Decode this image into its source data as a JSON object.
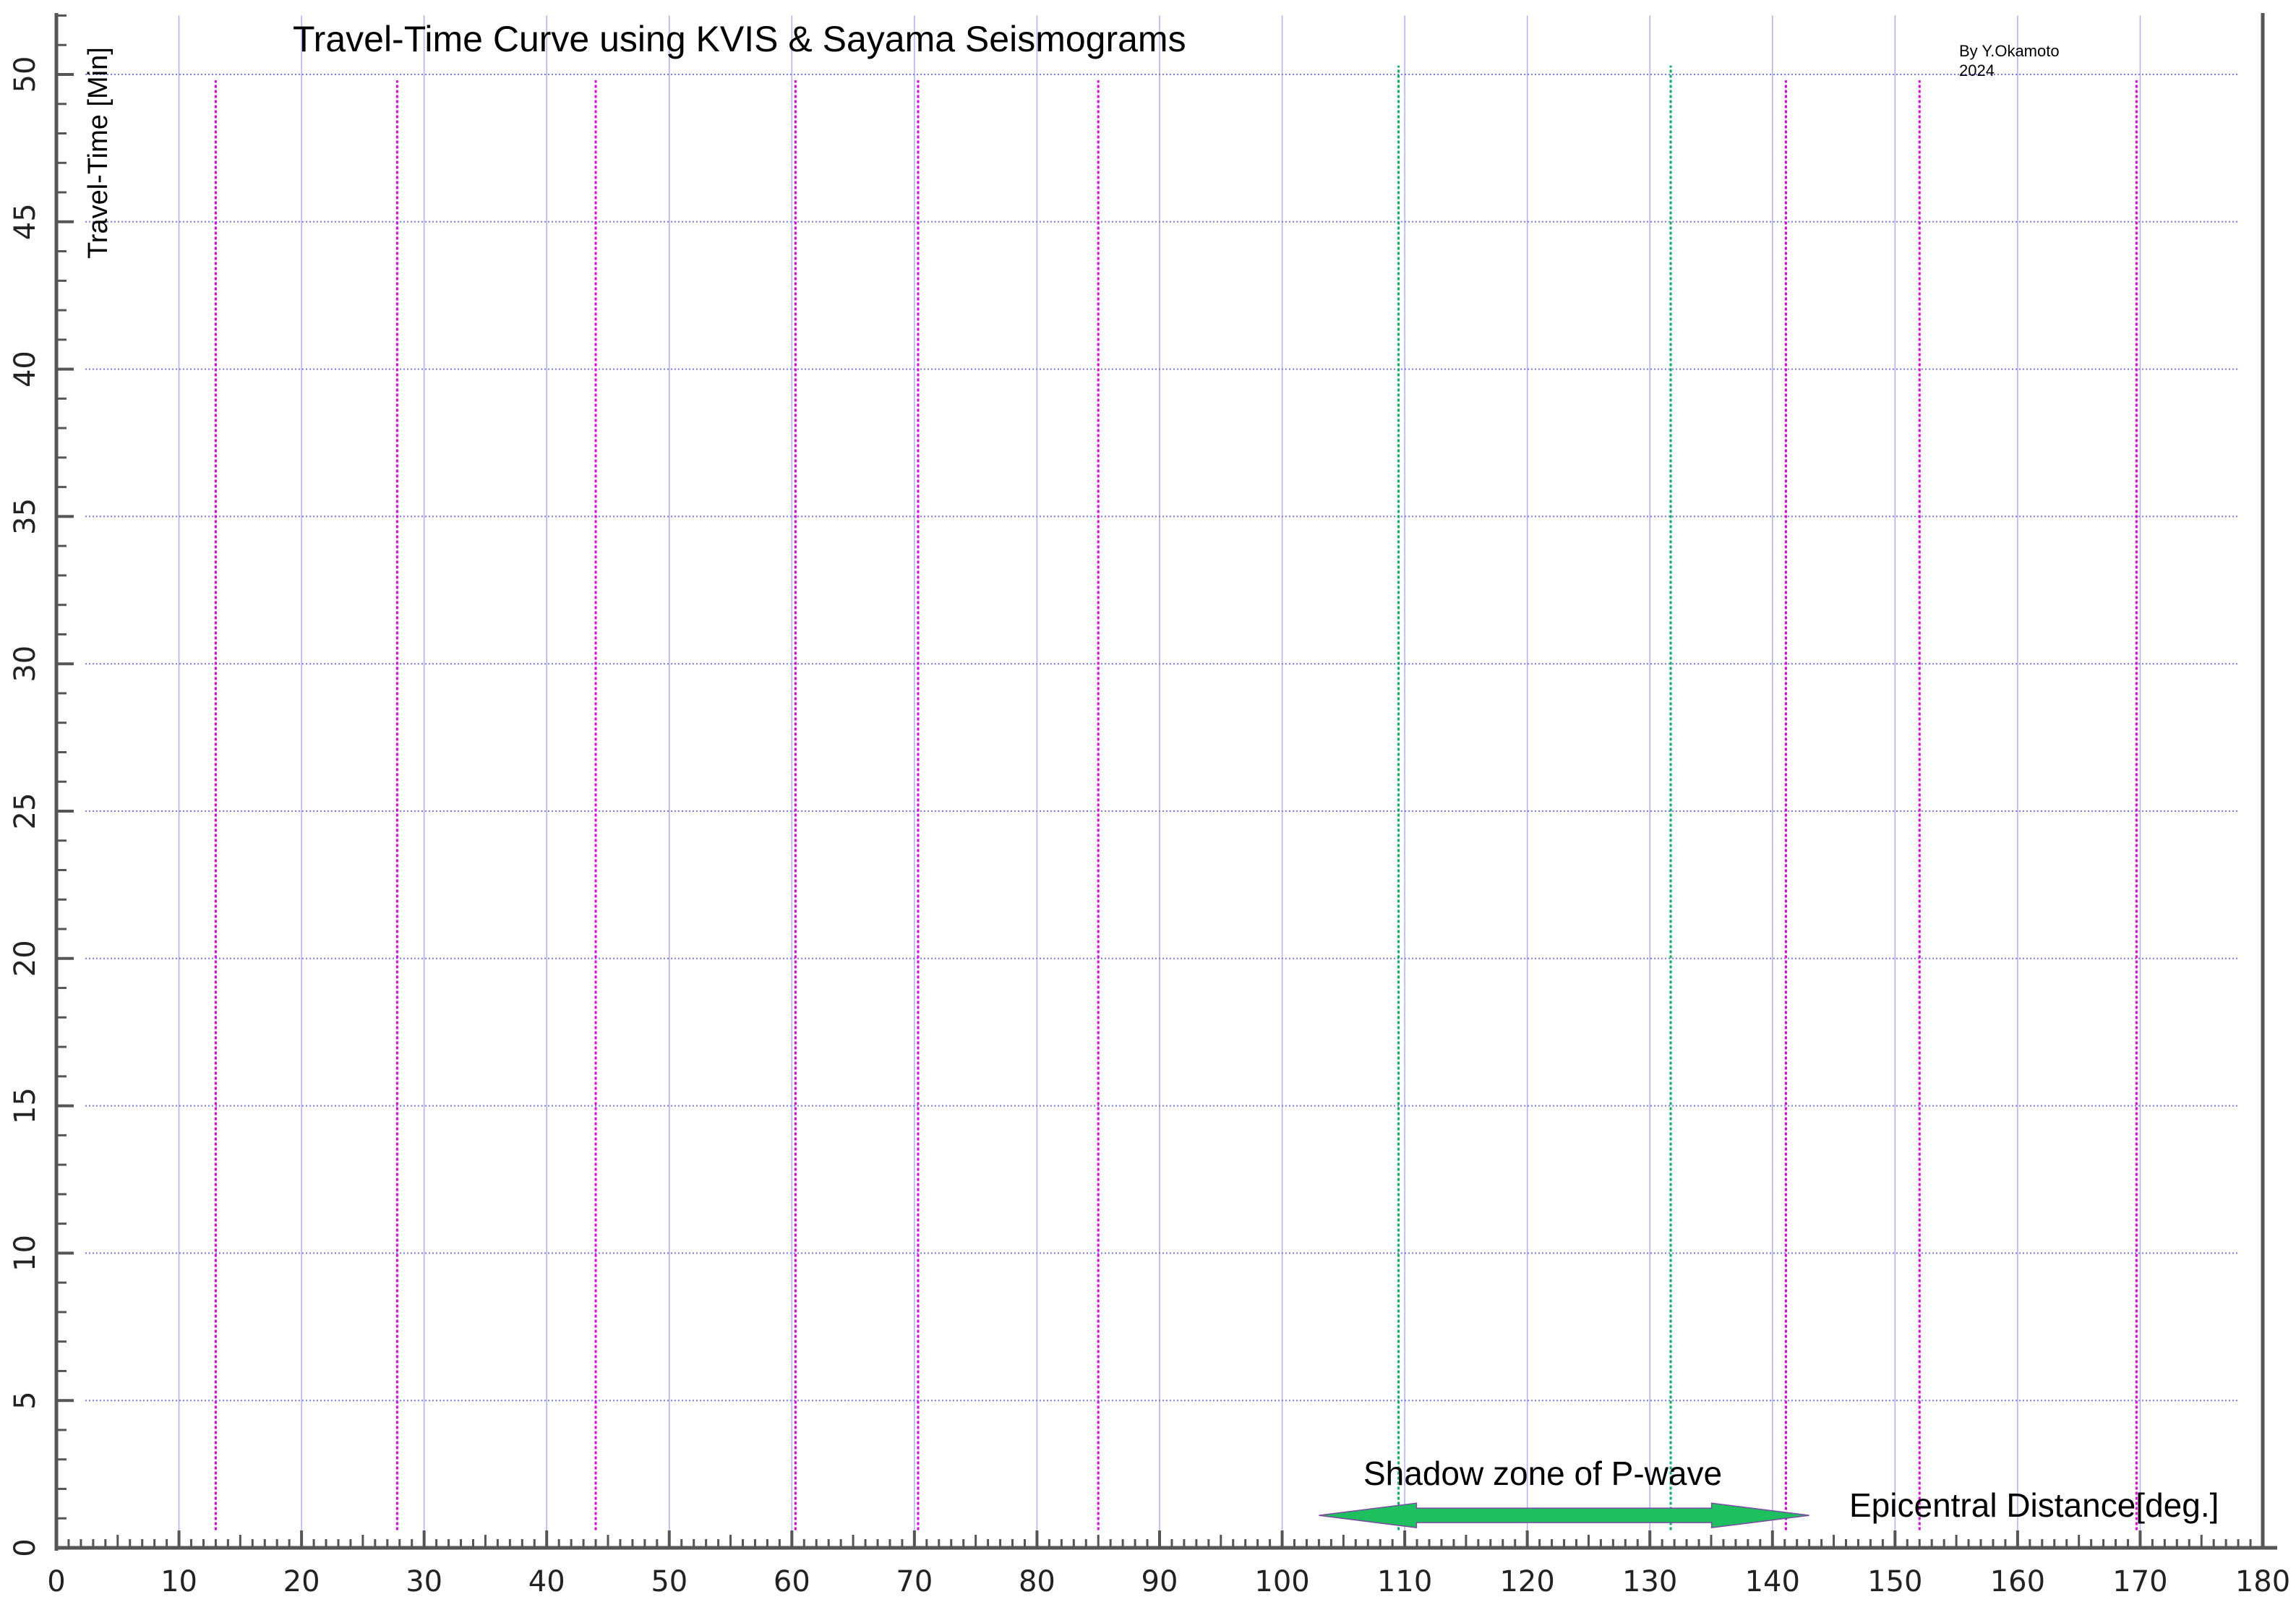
{
  "chart_data": {
    "type": "line",
    "title": "Travel-Time Curve using KVIS & Sayama Seismograms",
    "credit": "By Y.Okamoto",
    "credit_year": "2024",
    "xlabel": "Epicentral Distance[deg.]",
    "ylabel": "Travel-Time [Min]",
    "xlim": [
      0,
      180
    ],
    "ylim": [
      0,
      52
    ],
    "x_ticks": [
      0,
      10,
      20,
      30,
      40,
      50,
      60,
      70,
      80,
      90,
      100,
      110,
      120,
      130,
      140,
      150,
      160,
      170,
      180
    ],
    "y_ticks": [
      0,
      5,
      10,
      15,
      20,
      25,
      30,
      35,
      40,
      45,
      50
    ],
    "grid": true,
    "station_distances": [
      13,
      27.8,
      44,
      60.3,
      70.3,
      85,
      141.1,
      152,
      169.7
    ],
    "shadow_zone_boundaries": [
      109.5,
      131.7
    ],
    "shadow_zone_arrow": {
      "label": "Shadow zone of P-wave",
      "from": 103,
      "to": 143,
      "time": 1.1
    },
    "colors": {
      "grid": "#6c6cf0",
      "station_line": "#e000e0",
      "shadow_line": "#00b060",
      "arrow_fill": "#1dbf5e",
      "axis": "#555555"
    }
  }
}
